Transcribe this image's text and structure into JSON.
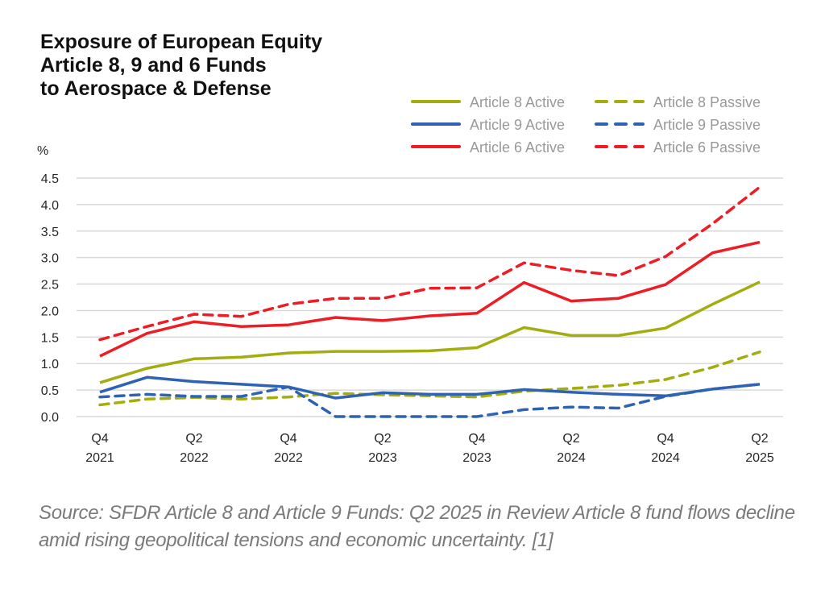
{
  "chart_data": {
    "type": "line",
    "title": [
      "Exposure of European Equity",
      "Article 8, 9 and 6 Funds",
      "to Aerospace & Defense"
    ],
    "ylabel": "%",
    "xlabel": "",
    "ylim": [
      0,
      4.5
    ],
    "yticks": [
      "0.0",
      "0.5",
      "1.0",
      "1.5",
      "2.0",
      "2.5",
      "3.0",
      "3.5",
      "4.0",
      "4.5"
    ],
    "grid": true,
    "legend_position": "top-right",
    "x": [
      "Q4 2021",
      "Q1 2022",
      "Q2 2022",
      "Q3 2022",
      "Q4 2022",
      "Q1 2023",
      "Q2 2023",
      "Q3 2023",
      "Q4 2023",
      "Q1 2024",
      "Q2 2024",
      "Q3 2024",
      "Q4 2024",
      "Q1 2025",
      "Q2 2025"
    ],
    "xticks": [
      {
        "index": 0,
        "line1": "Q4",
        "line2": "2021"
      },
      {
        "index": 2,
        "line1": "Q2",
        "line2": "2022"
      },
      {
        "index": 4,
        "line1": "Q4",
        "line2": "2022"
      },
      {
        "index": 6,
        "line1": "Q2",
        "line2": "2023"
      },
      {
        "index": 8,
        "line1": "Q4",
        "line2": "2023"
      },
      {
        "index": 10,
        "line1": "Q2",
        "line2": "2024"
      },
      {
        "index": 12,
        "line1": "Q4",
        "line2": "2024"
      },
      {
        "index": 14,
        "line1": "Q2",
        "line2": "2025"
      }
    ],
    "series": [
      {
        "name": "Article 8 Active",
        "color": "#a3ad0f",
        "dashed": false,
        "values": [
          0.64,
          0.91,
          1.09,
          1.12,
          1.2,
          1.23,
          1.23,
          1.24,
          1.3,
          1.68,
          1.53,
          1.53,
          1.67,
          2.12,
          2.54
        ]
      },
      {
        "name": "Article 8 Passive",
        "color": "#a3ad0f",
        "dashed": true,
        "values": [
          0.22,
          0.33,
          0.36,
          0.33,
          0.37,
          0.44,
          0.41,
          0.39,
          0.37,
          0.48,
          0.53,
          0.59,
          0.7,
          0.93,
          1.22
        ]
      },
      {
        "name": "Article 9 Active",
        "color": "#2f62b2",
        "dashed": false,
        "values": [
          0.46,
          0.74,
          0.66,
          0.61,
          0.56,
          0.35,
          0.45,
          0.42,
          0.42,
          0.51,
          0.46,
          0.42,
          0.39,
          0.52,
          0.61
        ]
      },
      {
        "name": "Article 9 Passive",
        "color": "#2f62b2",
        "dashed": true,
        "values": [
          0.37,
          0.42,
          0.38,
          0.38,
          0.56,
          0.0,
          0.0,
          0.0,
          0.0,
          0.13,
          0.18,
          0.16,
          0.38,
          0.52,
          0.61
        ]
      },
      {
        "name": "Article 6 Active",
        "color": "#ee1c25",
        "dashed": false,
        "values": [
          1.14,
          1.57,
          1.79,
          1.7,
          1.73,
          1.87,
          1.81,
          1.9,
          1.95,
          2.53,
          2.18,
          2.23,
          2.49,
          3.09,
          3.29
        ]
      },
      {
        "name": "Article 6 Passive",
        "color": "#ee1c25",
        "dashed": true,
        "values": [
          1.45,
          1.7,
          1.93,
          1.89,
          2.12,
          2.23,
          2.23,
          2.42,
          2.43,
          2.9,
          2.76,
          2.66,
          3.02,
          3.64,
          4.33
        ]
      }
    ],
    "legend": {
      "rows": [
        [
          "Article 8 Active",
          "Article 8 Passive"
        ],
        [
          "Article 9 Active",
          "Article 9 Passive"
        ],
        [
          "Article 6 Active",
          "Article 6 Passive"
        ]
      ]
    }
  },
  "source": "Source: SFDR Article 8 and Article 9 Funds: Q2 2025 in Review Article 8 fund flows decline amid rising geopolitical tensions and economic uncertainty. [1]",
  "colors": {
    "gridline": "#d9d9d9",
    "legend_text": "#999999",
    "axis_text": "#262626"
  }
}
